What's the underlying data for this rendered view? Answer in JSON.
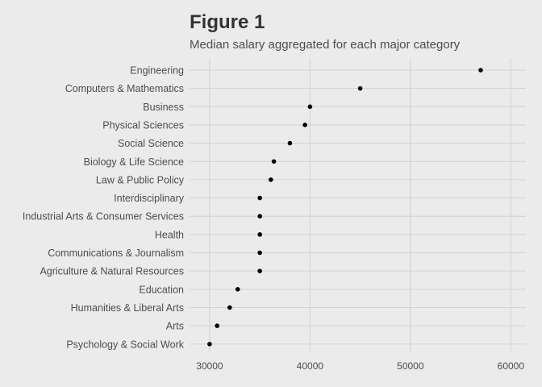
{
  "title": "Figure 1",
  "subtitle": "Median salary aggregated for each major category",
  "colors": {
    "background": "#ebebeb",
    "grid": "#d2d2d2",
    "point": "#000000",
    "text": "#4d4d4d"
  },
  "chart_data": {
    "type": "scatter",
    "title": "Figure 1",
    "subtitle": "Median salary aggregated for each major category",
    "xlabel": "",
    "ylabel": "",
    "xlim": [
      28000,
      61500
    ],
    "x_ticks": [
      30000,
      40000,
      50000,
      60000
    ],
    "x_tick_labels": [
      "30000",
      "40000",
      "50000",
      "60000"
    ],
    "grid": true,
    "legend": "none",
    "categories": [
      "Engineering",
      "Computers & Mathematics",
      "Business",
      "Physical Sciences",
      "Social Science",
      "Biology & Life Science",
      "Law & Public Policy",
      "Interdisciplinary",
      "Industrial Arts & Consumer Services",
      "Health",
      "Communications & Journalism",
      "Agriculture & Natural Resources",
      "Education",
      "Humanities & Liberal Arts",
      "Arts",
      "Psychology & Social Work"
    ],
    "values": [
      57000,
      45000,
      40000,
      39500,
      38000,
      36400,
      36100,
      35000,
      35000,
      35000,
      35000,
      35000,
      32800,
      32000,
      30750,
      30000
    ]
  }
}
